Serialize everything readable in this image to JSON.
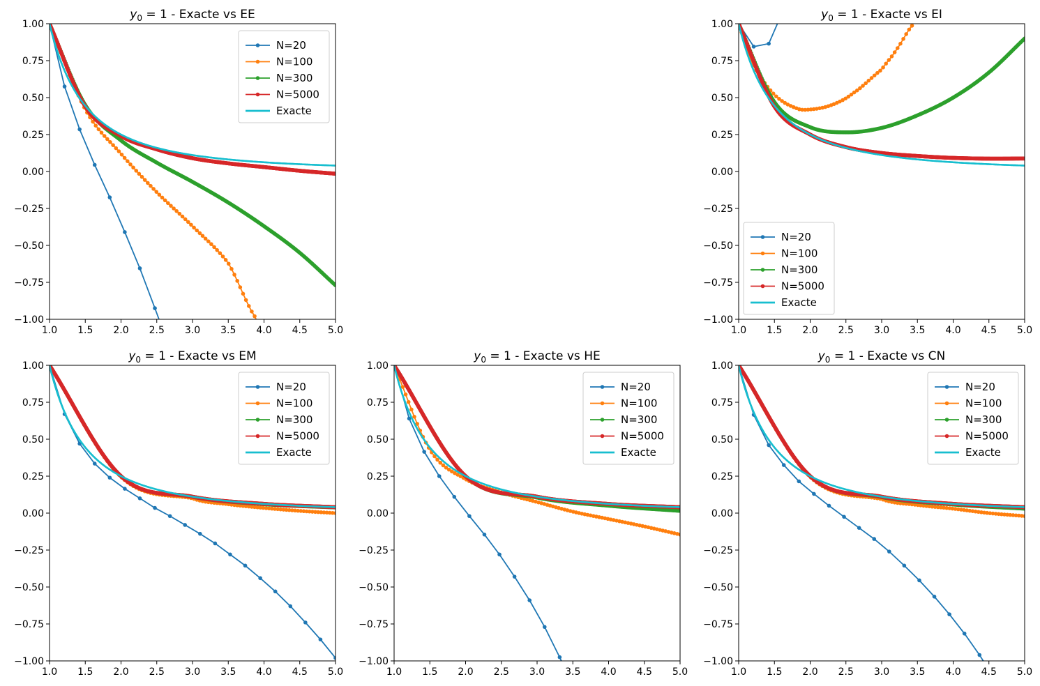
{
  "figure": {
    "layout": "2x3 subplot grid (top-middle cell empty)"
  },
  "series_colors": {
    "N=20": "#1f77b4",
    "N=100": "#ff7f0e",
    "N=300": "#2ca02c",
    "N=5000": "#d62728",
    "Exacte": "#17becf"
  },
  "chart_data": [
    {
      "type": "line",
      "cell": "top-left",
      "title_math": "y",
      "title_sub": "0",
      "title_rest": " = 1 - Exacte vs EE",
      "title": "y_0 = 1 - Exacte vs EE",
      "xlim": [
        1.0,
        5.0
      ],
      "ylim": [
        -1.0,
        1.0
      ],
      "xticks": [
        "1.0",
        "1.5",
        "2.0",
        "2.5",
        "3.0",
        "3.5",
        "4.0",
        "4.5",
        "5.0"
      ],
      "yticks": [
        "1.00",
        "0.75",
        "0.50",
        "0.25",
        "0.00",
        "−0.25",
        "−0.50",
        "−0.75",
        "−1.00"
      ],
      "grid": false,
      "legend_position": "upper-right",
      "legend": [
        "N=20",
        "N=100",
        "N=300",
        "N=5000",
        "Exacte"
      ],
      "series": [
        {
          "name": "N=20",
          "n": 20,
          "x": [
            1.0,
            1.2105,
            1.4211,
            1.6316,
            1.8421,
            2.0526,
            2.2632,
            2.4737,
            2.6842
          ],
          "y": [
            1.0,
            0.575,
            0.285,
            0.045,
            -0.175,
            -0.41,
            -0.655,
            -0.925,
            -1.2
          ]
        },
        {
          "name": "N=100",
          "n": 100,
          "curve": [
            [
              1,
              1
            ],
            [
              1.5,
              0.42
            ],
            [
              2,
              0.12
            ],
            [
              2.5,
              -0.14
            ],
            [
              3,
              -0.37
            ],
            [
              3.5,
              -0.62
            ],
            [
              3.9,
              -1.0
            ],
            [
              4.0,
              -1.1
            ]
          ]
        },
        {
          "name": "N=300",
          "n": 300,
          "curve": [
            [
              1,
              1
            ],
            [
              1.5,
              0.45
            ],
            [
              2,
              0.21
            ],
            [
              2.5,
              0.06
            ],
            [
              3,
              -0.07
            ],
            [
              3.5,
              -0.21
            ],
            [
              4,
              -0.37
            ],
            [
              4.5,
              -0.55
            ],
            [
              5,
              -0.77
            ]
          ]
        },
        {
          "name": "N=5000",
          "n": 5000,
          "curve": [
            [
              1,
              1
            ],
            [
              1.5,
              0.44
            ],
            [
              2,
              0.24
            ],
            [
              2.5,
              0.15
            ],
            [
              3,
              0.09
            ],
            [
              3.5,
              0.055
            ],
            [
              4,
              0.03
            ],
            [
              4.5,
              0.005
            ],
            [
              5,
              -0.015
            ]
          ]
        },
        {
          "name": "Exacte",
          "formula": "1/x^2"
        }
      ]
    },
    {
      "type": "line",
      "cell": "top-right",
      "title_math": "y",
      "title_sub": "0",
      "title_rest": " = 1 - Exacte vs EI",
      "title": "y_0 = 1 - Exacte vs EI",
      "xlim": [
        1.0,
        5.0
      ],
      "ylim": [
        -1.0,
        1.0
      ],
      "xticks": [
        "1.0",
        "1.5",
        "2.0",
        "2.5",
        "3.0",
        "3.5",
        "4.0",
        "4.5",
        "5.0"
      ],
      "yticks": [
        "1.00",
        "0.75",
        "0.50",
        "0.25",
        "0.00",
        "−0.25",
        "−0.50",
        "−0.75",
        "−1.00"
      ],
      "grid": false,
      "legend_position": "lower-left",
      "legend": [
        "N=20",
        "N=100",
        "N=300",
        "N=5000",
        "Exacte"
      ],
      "series": [
        {
          "name": "N=20",
          "n": 20,
          "x": [
            1.0,
            1.2105,
            1.4211,
            1.6316
          ],
          "y": [
            1.0,
            0.845,
            0.865,
            1.1
          ]
        },
        {
          "name": "N=100",
          "n": 100,
          "curve": [
            [
              1,
              1
            ],
            [
              1.2,
              0.72
            ],
            [
              1.5,
              0.52
            ],
            [
              1.8,
              0.43
            ],
            [
              2,
              0.42
            ],
            [
              2.3,
              0.45
            ],
            [
              2.6,
              0.53
            ],
            [
              3,
              0.69
            ],
            [
              3.2,
              0.82
            ],
            [
              3.45,
              1.0
            ],
            [
              3.5,
              1.05
            ]
          ]
        },
        {
          "name": "N=300",
          "n": 300,
          "curve": [
            [
              1,
              1
            ],
            [
              1.5,
              0.47
            ],
            [
              2,
              0.3
            ],
            [
              2.5,
              0.265
            ],
            [
              3,
              0.295
            ],
            [
              3.5,
              0.38
            ],
            [
              4,
              0.5
            ],
            [
              4.5,
              0.67
            ],
            [
              5,
              0.9
            ]
          ]
        },
        {
          "name": "N=5000",
          "n": 5000,
          "curve": [
            [
              1,
              1
            ],
            [
              1.5,
              0.44
            ],
            [
              2,
              0.25
            ],
            [
              2.5,
              0.165
            ],
            [
              3,
              0.125
            ],
            [
              3.5,
              0.105
            ],
            [
              4,
              0.092
            ],
            [
              4.5,
              0.087
            ],
            [
              5,
              0.088
            ]
          ]
        },
        {
          "name": "Exacte",
          "formula": "1/x^2"
        }
      ]
    },
    {
      "type": "line",
      "cell": "bottom-left",
      "title_math": "y",
      "title_sub": "0",
      "title_rest": " = 1 - Exacte vs EM",
      "title": "y_0 = 1 - Exacte vs EM",
      "xlim": [
        1.0,
        5.0
      ],
      "ylim": [
        -1.0,
        1.0
      ],
      "xticks": [
        "1.0",
        "1.5",
        "2.0",
        "2.5",
        "3.0",
        "3.5",
        "4.0",
        "4.5",
        "5.0"
      ],
      "yticks": [
        "1.00",
        "0.75",
        "0.50",
        "0.25",
        "0.00",
        "−0.25",
        "−0.50",
        "−0.75",
        "−1.00"
      ],
      "grid": false,
      "legend_position": "upper-right",
      "legend": [
        "N=20",
        "N=100",
        "N=300",
        "N=5000",
        "Exacte"
      ],
      "series": [
        {
          "name": "N=20",
          "n": 20,
          "x": [
            1.0,
            1.2105,
            1.4211,
            1.6316,
            1.8421,
            2.0526,
            2.2632,
            2.4737,
            2.6842,
            2.8947,
            3.1053,
            3.3158,
            3.5263,
            3.7368,
            3.9474,
            4.1579,
            4.3684,
            4.5789,
            4.7895,
            5.0
          ],
          "y": [
            1.0,
            0.67,
            0.47,
            0.335,
            0.24,
            0.165,
            0.1,
            0.035,
            -0.02,
            -0.08,
            -0.14,
            -0.205,
            -0.28,
            -0.355,
            -0.44,
            -0.53,
            -0.63,
            -0.74,
            -0.855,
            -0.98
          ]
        },
        {
          "name": "N=100",
          "n": 100,
          "curve": [
            [
              1,
              1
            ],
            [
              2,
              0.245
            ],
            [
              3,
              0.1
            ],
            [
              3.5,
              0.06
            ],
            [
              4,
              0.035
            ],
            [
              4.5,
              0.015
            ],
            [
              5,
              0.0
            ]
          ]
        },
        {
          "name": "N=300",
          "n": 300,
          "curve": [
            [
              1,
              1
            ],
            [
              2,
              0.25
            ],
            [
              3,
              0.11
            ],
            [
              4,
              0.06
            ],
            [
              5,
              0.038
            ]
          ]
        },
        {
          "name": "N=5000",
          "n": 5000,
          "curve": [
            [
              1,
              1
            ],
            [
              2,
              0.25
            ],
            [
              3,
              0.111
            ],
            [
              4,
              0.0625
            ],
            [
              5,
              0.04
            ]
          ]
        },
        {
          "name": "Exacte",
          "formula": "1/x^2"
        }
      ]
    },
    {
      "type": "line",
      "cell": "bottom-middle",
      "title_math": "y",
      "title_sub": "0",
      "title_rest": " = 1 - Exacte vs HE",
      "title": "y_0 = 1 - Exacte vs HE",
      "xlim": [
        1.0,
        5.0
      ],
      "ylim": [
        -1.0,
        1.0
      ],
      "xticks": [
        "1.0",
        "1.5",
        "2.0",
        "2.5",
        "3.0",
        "3.5",
        "4.0",
        "4.5",
        "5.0"
      ],
      "yticks": [
        "1.00",
        "0.75",
        "0.50",
        "0.25",
        "0.00",
        "−0.25",
        "−0.50",
        "−0.75",
        "−1.00"
      ],
      "grid": false,
      "legend_position": "upper-right",
      "legend": [
        "N=20",
        "N=100",
        "N=300",
        "N=5000",
        "Exacte"
      ],
      "series": [
        {
          "name": "N=20",
          "n": 20,
          "x": [
            1.0,
            1.2105,
            1.4211,
            1.6316,
            1.8421,
            2.0526,
            2.2632,
            2.4737,
            2.6842,
            2.8947,
            3.1053,
            3.3158,
            3.5263
          ],
          "y": [
            1.0,
            0.64,
            0.415,
            0.25,
            0.11,
            -0.02,
            -0.145,
            -0.28,
            -0.43,
            -0.59,
            -0.77,
            -0.975,
            -1.2
          ]
        },
        {
          "name": "N=100",
          "n": 100,
          "curve": [
            [
              1,
              1
            ],
            [
              1.5,
              0.43
            ],
            [
              2,
              0.23
            ],
            [
              2.5,
              0.14
            ],
            [
              3,
              0.075
            ],
            [
              3.5,
              0.01
            ],
            [
              4,
              -0.04
            ],
            [
              4.5,
              -0.09
            ],
            [
              5,
              -0.145
            ]
          ]
        },
        {
          "name": "N=300",
          "n": 300,
          "curve": [
            [
              1,
              1
            ],
            [
              2,
              0.25
            ],
            [
              3,
              0.105
            ],
            [
              4,
              0.05
            ],
            [
              5,
              0.015
            ]
          ]
        },
        {
          "name": "N=5000",
          "n": 5000,
          "curve": [
            [
              1,
              1
            ],
            [
              2,
              0.25
            ],
            [
              3,
              0.111
            ],
            [
              4,
              0.062
            ],
            [
              5,
              0.04
            ]
          ]
        },
        {
          "name": "Exacte",
          "formula": "1/x^2"
        }
      ]
    },
    {
      "type": "line",
      "cell": "bottom-right",
      "title_math": "y",
      "title_sub": "0",
      "title_rest": " = 1 - Exacte vs CN",
      "title": "y_0 = 1 - Exacte vs CN",
      "xlim": [
        1.0,
        5.0
      ],
      "ylim": [
        -1.0,
        1.0
      ],
      "xticks": [
        "1.0",
        "1.5",
        "2.0",
        "2.5",
        "3.0",
        "3.5",
        "4.0",
        "4.5",
        "5.0"
      ],
      "yticks": [
        "1.00",
        "0.75",
        "0.50",
        "0.25",
        "0.00",
        "−0.25",
        "−0.50",
        "−0.75",
        "−1.00"
      ],
      "grid": false,
      "legend_position": "upper-right",
      "legend": [
        "N=20",
        "N=100",
        "N=300",
        "N=5000",
        "Exacte"
      ],
      "series": [
        {
          "name": "N=20",
          "n": 20,
          "x": [
            1.0,
            1.2105,
            1.4211,
            1.6316,
            1.8421,
            2.0526,
            2.2632,
            2.4737,
            2.6842,
            2.8947,
            3.1053,
            3.3158,
            3.5263,
            3.7368,
            3.9474,
            4.1579,
            4.3684,
            4.5789
          ],
          "y": [
            1.0,
            0.665,
            0.46,
            0.325,
            0.215,
            0.13,
            0.05,
            -0.025,
            -0.1,
            -0.175,
            -0.26,
            -0.355,
            -0.455,
            -0.565,
            -0.685,
            -0.815,
            -0.96,
            -1.12
          ]
        },
        {
          "name": "N=100",
          "n": 100,
          "curve": [
            [
              1,
              1
            ],
            [
              2,
              0.245
            ],
            [
              3,
              0.095
            ],
            [
              3.5,
              0.055
            ],
            [
              4,
              0.03
            ],
            [
              4.5,
              0.0
            ],
            [
              5,
              -0.02
            ]
          ]
        },
        {
          "name": "N=300",
          "n": 300,
          "curve": [
            [
              1,
              1
            ],
            [
              2,
              0.25
            ],
            [
              3,
              0.108
            ],
            [
              4,
              0.058
            ],
            [
              5,
              0.03
            ]
          ]
        },
        {
          "name": "N=5000",
          "n": 5000,
          "curve": [
            [
              1,
              1
            ],
            [
              2,
              0.25
            ],
            [
              3,
              0.111
            ],
            [
              4,
              0.0625
            ],
            [
              5,
              0.04
            ]
          ]
        },
        {
          "name": "Exacte",
          "formula": "1/x^2"
        }
      ]
    }
  ]
}
